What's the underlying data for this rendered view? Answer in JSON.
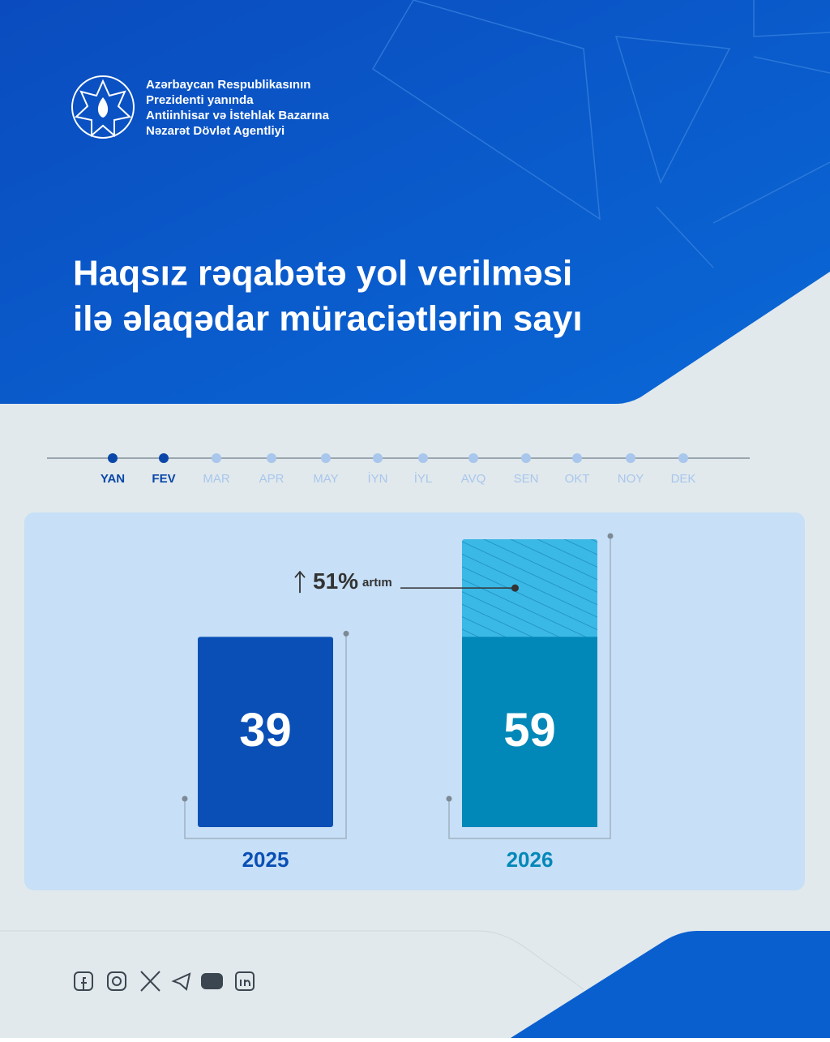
{
  "header": {
    "org_lines": [
      "Azərbaycan Respublikasının",
      "Prezidenti yanında",
      "Antiinhisar və İstehlak Bazarına",
      "Nəzarət Dövlət Agentliyi"
    ],
    "title_lines": [
      "Haqsız rəqabətə yol verilməsi",
      "ilə əlaqədar müraciətlərin sayı"
    ]
  },
  "timeline": {
    "months": [
      {
        "label": "YAN",
        "active": true
      },
      {
        "label": "FEV",
        "active": true
      },
      {
        "label": "MAR",
        "active": false
      },
      {
        "label": "APR",
        "active": false
      },
      {
        "label": "MAY",
        "active": false
      },
      {
        "label": "İYN",
        "active": false
      },
      {
        "label": "İYL",
        "active": false
      },
      {
        "label": "AVQ",
        "active": false
      },
      {
        "label": "SEN",
        "active": false
      },
      {
        "label": "OKT",
        "active": false
      },
      {
        "label": "NOY",
        "active": false
      },
      {
        "label": "DEK",
        "active": false
      }
    ]
  },
  "chart_data": {
    "type": "bar",
    "categories": [
      "2025",
      "2026"
    ],
    "values": [
      39,
      59
    ],
    "colors": [
      "#0a4fb5",
      "#0288b8"
    ],
    "annotation": {
      "value": 51,
      "label": "51%",
      "text": "artım"
    }
  }
}
